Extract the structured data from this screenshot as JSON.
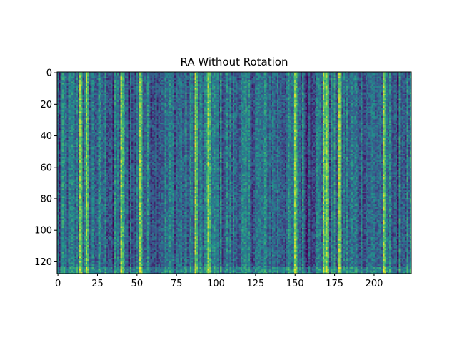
{
  "chart_data": {
    "type": "heatmap",
    "title": "RA Without Rotation",
    "xlabel": "",
    "ylabel": "",
    "columns": 224,
    "rows": 128,
    "xlim": [
      -0.5,
      223.5
    ],
    "ylim": [
      127.5,
      -0.5
    ],
    "x_ticks": [
      0,
      25,
      50,
      75,
      100,
      125,
      150,
      175,
      200
    ],
    "y_ticks": [
      0,
      20,
      40,
      60,
      80,
      100,
      120
    ],
    "colormap": "viridis",
    "colormap_stops": [
      "#440154",
      "#3b528b",
      "#21918c",
      "#5ec962",
      "#fde725"
    ],
    "value_range": [
      0,
      1
    ],
    "grid": false,
    "legend": "none",
    "notes_visible_structure": {
      "bright_columns_approx": [
        14,
        18,
        40,
        52,
        87,
        95,
        150,
        168,
        170,
        178,
        206
      ],
      "dark_columns_approx": [
        1,
        35,
        45,
        157,
        158,
        160,
        215
      ]
    }
  }
}
